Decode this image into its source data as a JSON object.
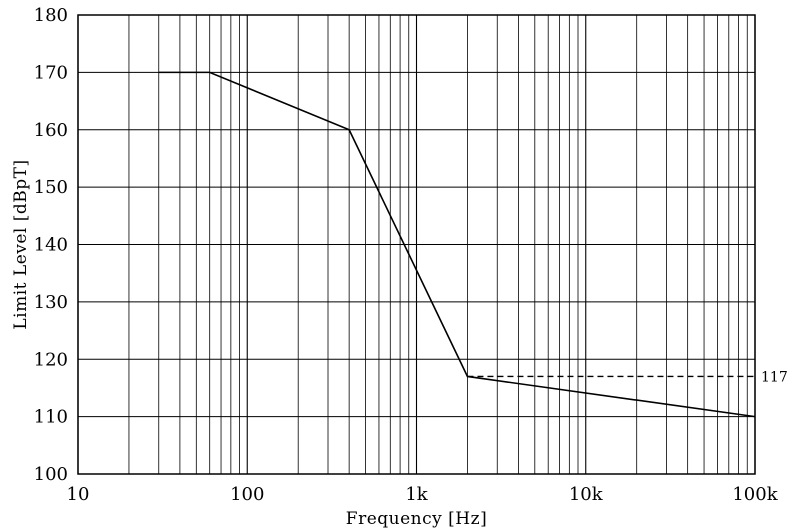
{
  "chart_data": {
    "type": "line",
    "x_scale": "log",
    "xlim": [
      10,
      100000
    ],
    "ylim": [
      100,
      180
    ],
    "xlabel": "Frequency [Hz]",
    "ylabel": "Limit Level [dBpT]",
    "grid": true,
    "x_ticks": [
      {
        "value": 10,
        "label": "10"
      },
      {
        "value": 100,
        "label": "100"
      },
      {
        "value": 1000,
        "label": "1k"
      },
      {
        "value": 10000,
        "label": "10k"
      },
      {
        "value": 100000,
        "label": "100k"
      }
    ],
    "y_ticks": [
      100,
      110,
      120,
      130,
      140,
      150,
      160,
      170,
      180
    ],
    "series": [
      {
        "style": "solid",
        "x": [
          30,
          60,
          400,
          2000,
          100000
        ],
        "y": [
          170,
          170,
          160,
          117,
          110
        ]
      },
      {
        "style": "dashed",
        "x": [
          2000,
          100000
        ],
        "y": [
          117,
          117
        ]
      }
    ],
    "annotations": [
      {
        "text": "117",
        "x": 100000,
        "y": 117
      }
    ]
  }
}
